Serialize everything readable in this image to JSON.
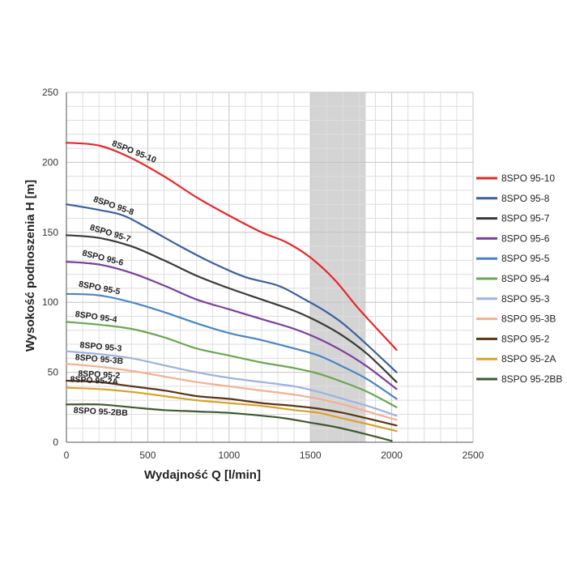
{
  "chart_data": {
    "type": "line",
    "title": "",
    "xlabel": "Wydajność Q [l/min]",
    "ylabel": "Wysokość podnoszenia H [m]",
    "xlim": [
      0,
      2500
    ],
    "ylim": [
      0,
      250
    ],
    "x_ticks": [
      0,
      500,
      1000,
      1500,
      2000,
      2500
    ],
    "y_ticks": [
      0,
      50,
      100,
      150,
      200,
      250
    ],
    "grid": true,
    "legend_position": "right",
    "shaded_region": {
      "x_from": 1500,
      "x_to": 1840,
      "color": "#d4d4d4"
    },
    "series": [
      {
        "name": "8SPO 95-10",
        "label": "8SPO 95-10",
        "color": "#e8252a",
        "points": [
          [
            0,
            214
          ],
          [
            200,
            212
          ],
          [
            400,
            203
          ],
          [
            600,
            190
          ],
          [
            800,
            175
          ],
          [
            1000,
            162
          ],
          [
            1200,
            150
          ],
          [
            1350,
            143
          ],
          [
            1500,
            132
          ],
          [
            1650,
            116
          ],
          [
            1800,
            95
          ],
          [
            2030,
            66
          ]
        ]
      },
      {
        "name": "8SPO 95-8",
        "label": "8SPO 95-8",
        "color": "#3b5fa0",
        "points": [
          [
            0,
            170
          ],
          [
            200,
            166
          ],
          [
            350,
            162
          ],
          [
            500,
            153
          ],
          [
            700,
            140
          ],
          [
            900,
            128
          ],
          [
            1100,
            118
          ],
          [
            1300,
            112
          ],
          [
            1450,
            103
          ],
          [
            1600,
            93
          ],
          [
            1750,
            80
          ],
          [
            2030,
            50
          ]
        ]
      },
      {
        "name": "8SPO 95-7",
        "label": "8SPO 95-7",
        "color": "#3a3a3a",
        "points": [
          [
            0,
            148
          ],
          [
            200,
            146
          ],
          [
            400,
            140
          ],
          [
            600,
            130
          ],
          [
            800,
            119
          ],
          [
            1000,
            110
          ],
          [
            1200,
            102
          ],
          [
            1400,
            94
          ],
          [
            1550,
            86
          ],
          [
            1700,
            76
          ],
          [
            1850,
            63
          ],
          [
            2030,
            43
          ]
        ]
      },
      {
        "name": "8SPO 95-6",
        "label": "8SPO 95-6",
        "color": "#7b3f9e",
        "points": [
          [
            0,
            129
          ],
          [
            200,
            127
          ],
          [
            400,
            121
          ],
          [
            600,
            112
          ],
          [
            800,
            102
          ],
          [
            1000,
            95
          ],
          [
            1200,
            88
          ],
          [
            1400,
            81
          ],
          [
            1550,
            74
          ],
          [
            1700,
            65
          ],
          [
            1850,
            54
          ],
          [
            2030,
            38
          ]
        ]
      },
      {
        "name": "8SPO 95-5",
        "label": "8SPO 95-5",
        "color": "#4a84c4",
        "points": [
          [
            0,
            106
          ],
          [
            200,
            105
          ],
          [
            400,
            100
          ],
          [
            600,
            93
          ],
          [
            800,
            85
          ],
          [
            1000,
            78
          ],
          [
            1200,
            73
          ],
          [
            1400,
            67
          ],
          [
            1550,
            62
          ],
          [
            1700,
            54
          ],
          [
            1850,
            45
          ],
          [
            2030,
            31
          ]
        ]
      },
      {
        "name": "8SPO 95-4",
        "label": "8SPO 95-4",
        "color": "#6aa84f",
        "points": [
          [
            0,
            86
          ],
          [
            200,
            84
          ],
          [
            400,
            81
          ],
          [
            600,
            75
          ],
          [
            800,
            67
          ],
          [
            1000,
            62
          ],
          [
            1200,
            57
          ],
          [
            1400,
            53
          ],
          [
            1550,
            49
          ],
          [
            1700,
            43
          ],
          [
            1850,
            36
          ],
          [
            2030,
            25
          ]
        ]
      },
      {
        "name": "8SPO 95-3",
        "label": "8SPO 95-3",
        "color": "#9fb1dd",
        "points": [
          [
            0,
            65
          ],
          [
            200,
            63
          ],
          [
            400,
            60
          ],
          [
            600,
            55
          ],
          [
            800,
            50
          ],
          [
            1000,
            46
          ],
          [
            1200,
            43
          ],
          [
            1400,
            40
          ],
          [
            1550,
            36
          ],
          [
            1700,
            31
          ],
          [
            1850,
            26
          ],
          [
            2030,
            19
          ]
        ]
      },
      {
        "name": "8SPO 95-3B",
        "label": "8SPO 95-3B",
        "color": "#f4b08f",
        "points": [
          [
            0,
            56
          ],
          [
            200,
            54
          ],
          [
            400,
            51
          ],
          [
            600,
            47
          ],
          [
            800,
            43
          ],
          [
            1000,
            40
          ],
          [
            1200,
            37
          ],
          [
            1400,
            34
          ],
          [
            1550,
            31
          ],
          [
            1700,
            27
          ],
          [
            1850,
            22
          ],
          [
            2030,
            16
          ]
        ]
      },
      {
        "name": "8SPO 95-2",
        "label": "8SPO 95-2",
        "color": "#5a3517",
        "points": [
          [
            0,
            44
          ],
          [
            200,
            43
          ],
          [
            400,
            40
          ],
          [
            600,
            37
          ],
          [
            800,
            33
          ],
          [
            1000,
            31
          ],
          [
            1200,
            28
          ],
          [
            1400,
            26
          ],
          [
            1550,
            24
          ],
          [
            1700,
            21
          ],
          [
            1850,
            17
          ],
          [
            2030,
            12
          ]
        ]
      },
      {
        "name": "8SPO 95-2A",
        "label": "8SPO 95-2A",
        "color": "#d9a228",
        "points": [
          [
            0,
            39
          ],
          [
            200,
            38
          ],
          [
            400,
            36
          ],
          [
            600,
            33
          ],
          [
            800,
            30
          ],
          [
            1000,
            28
          ],
          [
            1200,
            26
          ],
          [
            1400,
            23
          ],
          [
            1550,
            21
          ],
          [
            1700,
            17
          ],
          [
            1850,
            13
          ],
          [
            2030,
            8
          ]
        ]
      },
      {
        "name": "8SPO 95-2BB",
        "label": "8SPO 95-2BB",
        "color": "#3e5a2f",
        "points": [
          [
            0,
            27
          ],
          [
            200,
            27
          ],
          [
            400,
            25
          ],
          [
            600,
            23
          ],
          [
            800,
            22
          ],
          [
            1000,
            21
          ],
          [
            1200,
            19
          ],
          [
            1350,
            17
          ],
          [
            1500,
            14
          ],
          [
            1650,
            11
          ],
          [
            1800,
            7
          ],
          [
            2000,
            1
          ]
        ]
      }
    ]
  }
}
